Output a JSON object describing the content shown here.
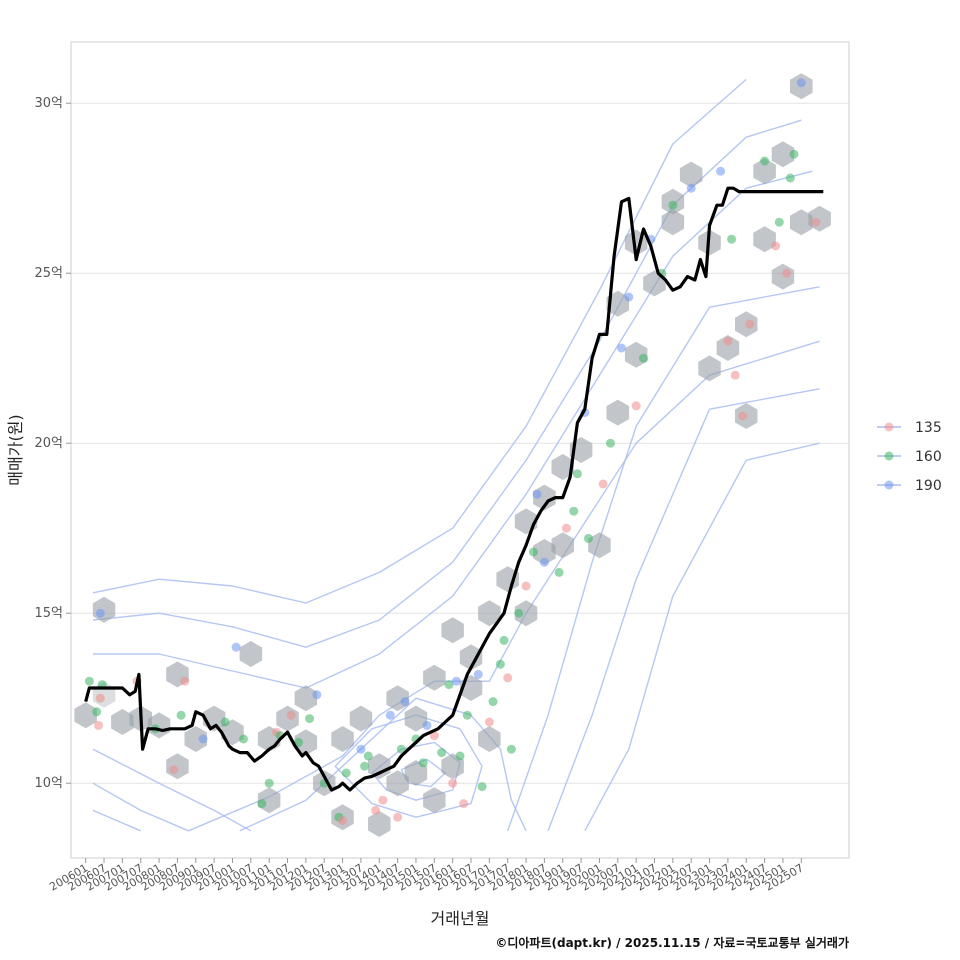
{
  "chart_data": {
    "type": "line",
    "subtype": "median price line over hexbin + scatter + density contours",
    "xlabel": "거래년월",
    "ylabel": "매매가(원)",
    "caption": "©디아파트(dapt.kr) / 2025.11.15 / 자료=국토교통부 실거래가",
    "x_range": [
      2005.6,
      2026.8
    ],
    "y_range": [
      7.8,
      31.8
    ],
    "y_unit": "억",
    "x_tick_values": [
      2006.0,
      2006.5,
      2007.0,
      2007.5,
      2008.0,
      2008.5,
      2009.0,
      2009.5,
      2010.0,
      2010.5,
      2011.0,
      2011.5,
      2012.0,
      2012.5,
      2013.0,
      2013.5,
      2014.0,
      2014.5,
      2015.0,
      2015.5,
      2016.0,
      2016.5,
      2017.0,
      2017.5,
      2018.0,
      2018.5,
      2019.0,
      2019.5,
      2020.0,
      2020.5,
      2021.0,
      2021.5,
      2022.0,
      2022.5,
      2023.0,
      2023.5,
      2024.0,
      2024.5,
      2025.0,
      2025.5
    ],
    "x_tick_labels": [
      "200601",
      "200607",
      "200701",
      "200707",
      "200801",
      "200807",
      "200901",
      "200907",
      "201001",
      "201007",
      "201101",
      "201107",
      "201201",
      "201207",
      "201301",
      "201307",
      "201401",
      "201407",
      "201501",
      "201507",
      "201601",
      "201607",
      "201701",
      "201707",
      "201801",
      "201807",
      "201901",
      "201907",
      "202001",
      "202007",
      "202101",
      "202107",
      "202201",
      "202207",
      "202301",
      "202307",
      "202401",
      "202407",
      "202501",
      "202507"
    ],
    "y_tick_values": [
      10,
      15,
      20,
      25,
      30
    ],
    "y_tick_labels": [
      "10억",
      "15억",
      "20억",
      "25억",
      "30억"
    ],
    "legend": {
      "position": "right",
      "entries": [
        {
          "label": "135",
          "color": "#f08c8c"
        },
        {
          "label": "160",
          "color": "#3cb464"
        },
        {
          "label": "190",
          "color": "#6e96f0"
        }
      ]
    },
    "line_color": "#000000",
    "hex_color": "#9aa0a6",
    "contour_color": "#a8bdf0",
    "median_line": {
      "name": "median",
      "x": [
        2006.0,
        2006.1,
        2006.3,
        2006.5,
        2006.7,
        2006.9,
        2007.0,
        2007.2,
        2007.35,
        2007.45,
        2007.55,
        2007.7,
        2007.9,
        2008.1,
        2008.3,
        2008.5,
        2008.7,
        2008.9,
        2009.0,
        2009.2,
        2009.4,
        2009.55,
        2009.7,
        2009.9,
        2010.0,
        2010.2,
        2010.4,
        2010.6,
        2010.8,
        2011.0,
        2011.15,
        2011.3,
        2011.5,
        2011.7,
        2011.9,
        2012.0,
        2012.2,
        2012.35,
        2012.5,
        2012.7,
        2012.9,
        2013.0,
        2013.2,
        2013.4,
        2013.6,
        2013.8,
        2014.0,
        2014.2,
        2014.4,
        2014.6,
        2014.8,
        2015.0,
        2015.2,
        2015.4,
        2015.6,
        2015.8,
        2016.0,
        2016.2,
        2016.4,
        2016.6,
        2016.8,
        2017.0,
        2017.2,
        2017.4,
        2017.6,
        2017.8,
        2018.0,
        2018.2,
        2018.4,
        2018.6,
        2018.8,
        2019.0,
        2019.2,
        2019.4,
        2019.6,
        2019.8,
        2020.0,
        2020.2,
        2020.4,
        2020.6,
        2020.8,
        2021.0,
        2021.2,
        2021.4,
        2021.6,
        2021.8,
        2022.0,
        2022.2,
        2022.4,
        2022.6,
        2022.75,
        2022.9,
        2023.0,
        2023.2,
        2023.35,
        2023.5,
        2023.65,
        2023.8,
        2024.0,
        2024.2,
        2024.4,
        2024.6,
        2024.8,
        2025.0,
        2025.2,
        2025.4,
        2025.6,
        2025.8,
        2026.0,
        2026.1
      ],
      "values": [
        12.4,
        12.8,
        12.8,
        12.8,
        12.8,
        12.8,
        12.8,
        12.6,
        12.7,
        13.2,
        11.0,
        11.6,
        11.6,
        11.55,
        11.6,
        11.6,
        11.6,
        11.7,
        12.1,
        12.0,
        11.6,
        11.7,
        11.5,
        11.1,
        11.0,
        10.9,
        10.9,
        10.65,
        10.8,
        11.0,
        11.1,
        11.3,
        11.5,
        11.1,
        10.8,
        10.9,
        10.6,
        10.5,
        10.2,
        9.8,
        9.9,
        10.0,
        9.8,
        10.0,
        10.15,
        10.2,
        10.3,
        10.4,
        10.5,
        10.8,
        11.0,
        11.2,
        11.4,
        11.5,
        11.6,
        11.8,
        12.0,
        12.6,
        13.2,
        13.6,
        14.0,
        14.4,
        14.7,
        15.0,
        15.8,
        16.5,
        17.0,
        17.6,
        18.0,
        18.3,
        18.4,
        18.4,
        19.0,
        20.6,
        21.0,
        22.5,
        23.2,
        23.2,
        25.5,
        27.1,
        27.2,
        25.4,
        26.3,
        25.8,
        25.0,
        24.8,
        24.5,
        24.6,
        24.9,
        24.8,
        25.4,
        24.9,
        26.4,
        27.0,
        27.0,
        27.5,
        27.5,
        27.4,
        27.4,
        27.4,
        27.4,
        27.4,
        27.4,
        27.4,
        27.4,
        27.4,
        27.4,
        27.4,
        27.4,
        27.4
      ]
    },
    "hexbins": {
      "x": [
        2006.0,
        2006.5,
        2006.5,
        2007.0,
        2007.5,
        2008.0,
        2008.5,
        2008.5,
        2009.0,
        2009.5,
        2010.0,
        2010.5,
        2011.0,
        2011.0,
        2011.5,
        2012.0,
        2012.0,
        2012.5,
        2013.0,
        2013.0,
        2013.5,
        2014.0,
        2014.0,
        2014.5,
        2014.5,
        2015.0,
        2015.0,
        2015.5,
        2015.5,
        2016.0,
        2016.0,
        2016.5,
        2016.5,
        2017.0,
        2017.0,
        2017.5,
        2018.0,
        2018.0,
        2018.5,
        2018.5,
        2019.0,
        2019.0,
        2019.5,
        2020.0,
        2020.5,
        2020.5,
        2021.0,
        2021.0,
        2021.5,
        2022.0,
        2022.0,
        2022.5,
        2023.0,
        2023.0,
        2023.5,
        2024.0,
        2024.0,
        2024.5,
        2024.5,
        2025.0,
        2025.0,
        2025.5,
        2025.5,
        2026.0
      ],
      "values": [
        12.0,
        15.1,
        12.6,
        11.8,
        11.9,
        11.7,
        13.2,
        10.5,
        11.3,
        11.9,
        11.5,
        13.8,
        9.5,
        11.3,
        11.9,
        12.5,
        11.2,
        10.0,
        11.3,
        9.0,
        11.9,
        8.8,
        10.5,
        12.5,
        10.0,
        11.9,
        10.3,
        13.1,
        9.5,
        14.5,
        10.5,
        13.7,
        12.8,
        15.0,
        11.3,
        16.0,
        17.7,
        15.0,
        18.4,
        16.8,
        19.3,
        17.0,
        19.8,
        17.0,
        20.9,
        24.1,
        22.6,
        25.9,
        24.7,
        27.1,
        26.5,
        27.9,
        25.9,
        22.2,
        22.8,
        20.8,
        23.5,
        26.0,
        28.0,
        28.5,
        24.9,
        30.5,
        26.5,
        26.6
      ],
      "alpha": [
        0.6,
        0.6,
        0.35,
        0.6,
        0.6,
        0.6,
        0.6,
        0.6,
        0.6,
        0.6,
        0.6,
        0.6,
        0.6,
        0.6,
        0.6,
        0.6,
        0.6,
        0.6,
        0.6,
        0.6,
        0.6,
        0.6,
        0.6,
        0.6,
        0.6,
        0.6,
        0.6,
        0.6,
        0.6,
        0.6,
        0.6,
        0.6,
        0.6,
        0.6,
        0.6,
        0.6,
        0.6,
        0.6,
        0.6,
        0.6,
        0.6,
        0.6,
        0.6,
        0.6,
        0.6,
        0.6,
        0.6,
        0.6,
        0.6,
        0.6,
        0.6,
        0.6,
        0.6,
        0.6,
        0.6,
        0.6,
        0.6,
        0.6,
        0.6,
        0.6,
        0.6,
        0.6,
        0.6,
        0.6
      ]
    },
    "points": [
      {
        "series": "160",
        "x": 2006.1,
        "y": 13.0
      },
      {
        "series": "190",
        "x": 2006.4,
        "y": 15.0
      },
      {
        "series": "160",
        "x": 2006.3,
        "y": 12.1
      },
      {
        "series": "135",
        "x": 2006.35,
        "y": 11.7
      },
      {
        "series": "135",
        "x": 2006.4,
        "y": 12.5
      },
      {
        "series": "160",
        "x": 2006.45,
        "y": 12.9
      },
      {
        "series": "135",
        "x": 2007.4,
        "y": 13.0
      },
      {
        "series": "160",
        "x": 2007.9,
        "y": 11.6
      },
      {
        "series": "135",
        "x": 2008.4,
        "y": 10.4
      },
      {
        "series": "160",
        "x": 2008.6,
        "y": 12.0
      },
      {
        "series": "135",
        "x": 2008.7,
        "y": 13.0
      },
      {
        "series": "190",
        "x": 2009.2,
        "y": 11.3
      },
      {
        "series": "160",
        "x": 2009.8,
        "y": 11.8
      },
      {
        "series": "190",
        "x": 2010.1,
        "y": 14.0
      },
      {
        "series": "160",
        "x": 2010.3,
        "y": 11.3
      },
      {
        "series": "160",
        "x": 2010.8,
        "y": 9.4
      },
      {
        "series": "160",
        "x": 2011.0,
        "y": 10.0
      },
      {
        "series": "135",
        "x": 2011.2,
        "y": 11.5
      },
      {
        "series": "160",
        "x": 2011.3,
        "y": 11.4
      },
      {
        "series": "135",
        "x": 2011.6,
        "y": 12.0
      },
      {
        "series": "160",
        "x": 2011.8,
        "y": 11.2
      },
      {
        "series": "160",
        "x": 2012.1,
        "y": 11.9
      },
      {
        "series": "190",
        "x": 2012.3,
        "y": 12.6
      },
      {
        "series": "160",
        "x": 2012.5,
        "y": 10.0
      },
      {
        "series": "160",
        "x": 2012.9,
        "y": 9.0
      },
      {
        "series": "135",
        "x": 2013.0,
        "y": 8.9
      },
      {
        "series": "160",
        "x": 2013.1,
        "y": 10.3
      },
      {
        "series": "190",
        "x": 2013.5,
        "y": 11.0
      },
      {
        "series": "160",
        "x": 2013.7,
        "y": 10.8
      },
      {
        "series": "135",
        "x": 2013.9,
        "y": 9.2
      },
      {
        "series": "160",
        "x": 2013.6,
        "y": 10.5
      },
      {
        "series": "135",
        "x": 2014.1,
        "y": 9.5
      },
      {
        "series": "190",
        "x": 2014.3,
        "y": 12.0
      },
      {
        "series": "135",
        "x": 2014.5,
        "y": 9.0
      },
      {
        "series": "160",
        "x": 2014.6,
        "y": 11.0
      },
      {
        "series": "190",
        "x": 2014.7,
        "y": 12.4
      },
      {
        "series": "160",
        "x": 2015.0,
        "y": 11.3
      },
      {
        "series": "160",
        "x": 2015.2,
        "y": 10.6
      },
      {
        "series": "190",
        "x": 2015.3,
        "y": 11.7
      },
      {
        "series": "135",
        "x": 2015.5,
        "y": 11.4
      },
      {
        "series": "160",
        "x": 2015.7,
        "y": 10.9
      },
      {
        "series": "160",
        "x": 2015.9,
        "y": 12.9
      },
      {
        "series": "135",
        "x": 2016.0,
        "y": 10.0
      },
      {
        "series": "190",
        "x": 2016.1,
        "y": 13.0
      },
      {
        "series": "160",
        "x": 2016.2,
        "y": 10.8
      },
      {
        "series": "135",
        "x": 2016.3,
        "y": 9.4
      },
      {
        "series": "160",
        "x": 2016.4,
        "y": 12.0
      },
      {
        "series": "190",
        "x": 2016.7,
        "y": 13.2
      },
      {
        "series": "160",
        "x": 2016.8,
        "y": 9.9
      },
      {
        "series": "135",
        "x": 2017.0,
        "y": 11.8
      },
      {
        "series": "160",
        "x": 2017.1,
        "y": 12.4
      },
      {
        "series": "160",
        "x": 2017.3,
        "y": 13.5
      },
      {
        "series": "160",
        "x": 2017.4,
        "y": 14.2
      },
      {
        "series": "135",
        "x": 2017.5,
        "y": 13.1
      },
      {
        "series": "160",
        "x": 2017.6,
        "y": 11.0
      },
      {
        "series": "160",
        "x": 2017.8,
        "y": 15.0
      },
      {
        "series": "135",
        "x": 2018.0,
        "y": 15.8
      },
      {
        "series": "160",
        "x": 2018.2,
        "y": 16.8
      },
      {
        "series": "190",
        "x": 2018.3,
        "y": 18.5
      },
      {
        "series": "190",
        "x": 2018.5,
        "y": 16.5
      },
      {
        "series": "160",
        "x": 2018.9,
        "y": 16.2
      },
      {
        "series": "135",
        "x": 2019.1,
        "y": 17.5
      },
      {
        "series": "160",
        "x": 2019.3,
        "y": 18.0
      },
      {
        "series": "160",
        "x": 2019.4,
        "y": 19.1
      },
      {
        "series": "190",
        "x": 2019.6,
        "y": 20.9
      },
      {
        "series": "160",
        "x": 2019.7,
        "y": 17.2
      },
      {
        "series": "135",
        "x": 2020.1,
        "y": 18.8
      },
      {
        "series": "160",
        "x": 2020.3,
        "y": 20.0
      },
      {
        "series": "190",
        "x": 2020.6,
        "y": 22.8
      },
      {
        "series": "190",
        "x": 2020.8,
        "y": 24.3
      },
      {
        "series": "135",
        "x": 2021.0,
        "y": 21.1
      },
      {
        "series": "160",
        "x": 2021.2,
        "y": 22.5
      },
      {
        "series": "190",
        "x": 2021.4,
        "y": 26.0
      },
      {
        "series": "160",
        "x": 2021.7,
        "y": 25.0
      },
      {
        "series": "160",
        "x": 2022.0,
        "y": 27.0
      },
      {
        "series": "190",
        "x": 2022.5,
        "y": 27.5
      },
      {
        "series": "190",
        "x": 2023.3,
        "y": 28.0
      },
      {
        "series": "160",
        "x": 2023.6,
        "y": 26.0
      },
      {
        "series": "135",
        "x": 2023.5,
        "y": 23.0
      },
      {
        "series": "135",
        "x": 2023.7,
        "y": 22.0
      },
      {
        "series": "135",
        "x": 2024.1,
        "y": 23.5
      },
      {
        "series": "135",
        "x": 2023.9,
        "y": 20.8
      },
      {
        "series": "160",
        "x": 2024.5,
        "y": 28.3
      },
      {
        "series": "135",
        "x": 2024.8,
        "y": 25.8
      },
      {
        "series": "135",
        "x": 2025.1,
        "y": 25.0
      },
      {
        "series": "160",
        "x": 2025.2,
        "y": 27.8
      },
      {
        "series": "160",
        "x": 2025.3,
        "y": 28.5
      },
      {
        "series": "190",
        "x": 2025.5,
        "y": 30.6
      },
      {
        "series": "135",
        "x": 2025.9,
        "y": 26.5
      },
      {
        "series": "160",
        "x": 2024.9,
        "y": 26.5
      }
    ]
  }
}
